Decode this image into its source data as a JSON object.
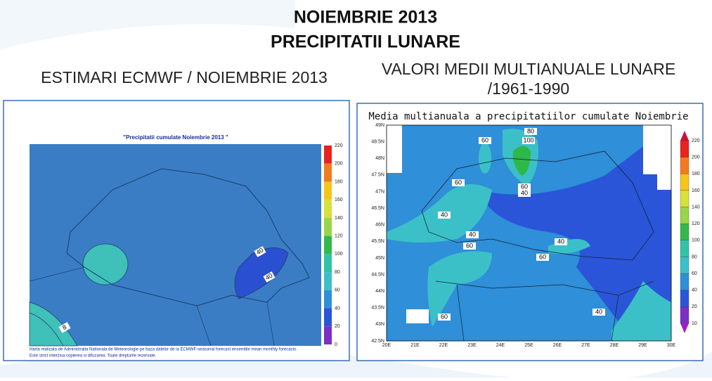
{
  "header": {
    "title": "NOIEMBRIE 2013",
    "subtitle": "PRECIPITATII LUNARE"
  },
  "left": {
    "heading": "ESTIMARI ECMWF / NOIEMBRIE 2013",
    "map_title": "\"Precipitatii cumulate Noiembrie 2013 \"",
    "colorbar": [
      220,
      200,
      180,
      160,
      140,
      120,
      100,
      80,
      60,
      40,
      20,
      0
    ],
    "contour_labels": [
      40,
      40,
      8
    ],
    "footnote": [
      "Harta realizata de Administratia Nationala de Meteorologie pe baza datelor de la ECMWF-seasonal forecast ensemble mean monthly forecasts.",
      "Este strict interzisa copierea si difuzarea. Toate drepturile rezervate."
    ]
  },
  "right": {
    "heading": [
      "VALORI MEDII MULTIANUALE LUNARE",
      "/1961-1990"
    ],
    "map_title": "Media multianuala a precipitatiilor cumulate Noiembrie",
    "lat_labels": [
      "49N",
      "48.5N",
      "48N",
      "47.5N",
      "47N",
      "46.5N",
      "46N",
      "45.5N",
      "45N",
      "44.5N",
      "44N",
      "43.5N",
      "43N",
      "42.5N"
    ],
    "lon_labels": [
      "20E",
      "21E",
      "22E",
      "23E",
      "24E",
      "25E",
      "26E",
      "27E",
      "28E",
      "29E",
      "30E"
    ],
    "colorbar": [
      220,
      200,
      180,
      160,
      140,
      120,
      100,
      80,
      60,
      40,
      20,
      10
    ],
    "contour_labels": [
      60,
      80,
      100,
      60,
      60,
      40,
      40,
      40,
      60,
      40,
      60,
      40,
      60
    ]
  }
}
